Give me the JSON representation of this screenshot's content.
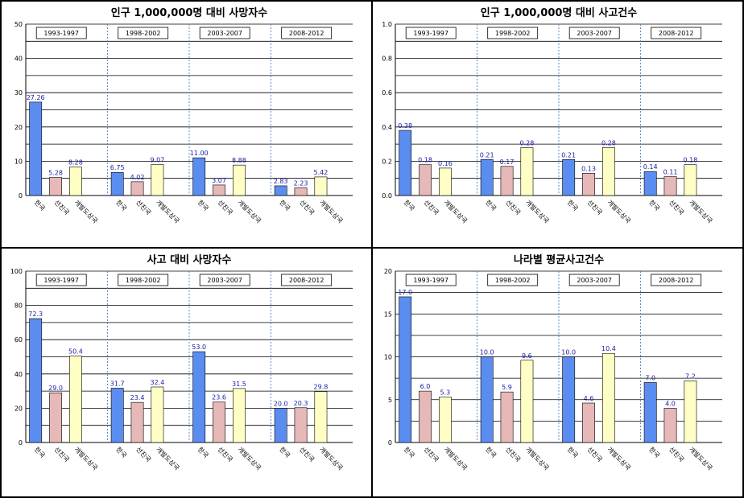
{
  "colors": {
    "korea": "#5b8cf0",
    "advanced": "#e6b8b7",
    "developing": "#ffffc5",
    "bar_stroke": "#000000",
    "grid": "#000000",
    "divider": "#4f81bd",
    "label": "#1a1aa6"
  },
  "chart_data": [
    {
      "type": "bar",
      "title": "인구 1,000,000명 대비 사망자수",
      "ylim": [
        0,
        50
      ],
      "yticks": [
        "0",
        "10",
        "20",
        "30",
        "40",
        "50"
      ],
      "groups": [
        "1993-1997",
        "1998-2002",
        "2003-2007",
        "2008-2012"
      ],
      "categories": [
        "한국",
        "선진국",
        "개발도상국"
      ],
      "values": [
        [
          27.26,
          5.28,
          8.28
        ],
        [
          6.75,
          4.02,
          9.07
        ],
        [
          11.0,
          3.07,
          8.88
        ],
        [
          2.83,
          2.23,
          5.42
        ]
      ],
      "labels": [
        [
          "27.26",
          "5.28",
          "8.28"
        ],
        [
          "6.75",
          "4.02",
          "9.07"
        ],
        [
          "11.00",
          "3.07",
          "8.88"
        ],
        [
          "2.83",
          "2.23",
          "5.42"
        ]
      ]
    },
    {
      "type": "bar",
      "title": "인구 1,000,000명 대비 사고건수",
      "ylim": [
        0,
        1.0
      ],
      "yticks": [
        "0.0",
        "0.2",
        "0.4",
        "0.6",
        "0.8",
        "1.0"
      ],
      "groups": [
        "1993-1997",
        "1998-2002",
        "2003-2007",
        "2008-2012"
      ],
      "categories": [
        "한국",
        "선진국",
        "개발도상국"
      ],
      "values": [
        [
          0.38,
          0.18,
          0.16
        ],
        [
          0.21,
          0.17,
          0.28
        ],
        [
          0.21,
          0.13,
          0.28
        ],
        [
          0.14,
          0.11,
          0.18
        ]
      ],
      "labels": [
        [
          "0.38",
          "0.18",
          "0.16"
        ],
        [
          "0.21",
          "0.17",
          "0.28"
        ],
        [
          "0.21",
          "0.13",
          "0.28"
        ],
        [
          "0.14",
          "0.11",
          "0.18"
        ]
      ]
    },
    {
      "type": "bar",
      "title": "사고 대비 사망자수",
      "ylim": [
        0,
        100
      ],
      "yticks": [
        "0",
        "20",
        "40",
        "60",
        "80",
        "100"
      ],
      "groups": [
        "1993-1997",
        "1998-2002",
        "2003-2007",
        "2008-2012"
      ],
      "categories": [
        "한국",
        "선진국",
        "개발도상국"
      ],
      "values": [
        [
          72.3,
          29.0,
          50.4
        ],
        [
          31.7,
          23.4,
          32.4
        ],
        [
          53.0,
          23.6,
          31.5
        ],
        [
          20.0,
          20.3,
          29.8
        ]
      ],
      "labels": [
        [
          "72.3",
          "29.0",
          "50.4"
        ],
        [
          "31.7",
          "23.4",
          "32.4"
        ],
        [
          "53.0",
          "23.6",
          "31.5"
        ],
        [
          "20.0",
          "20.3",
          "29.8"
        ]
      ]
    },
    {
      "type": "bar",
      "title": "나라별 평균사고건수",
      "ylim": [
        0,
        20
      ],
      "yticks": [
        "0",
        "5",
        "10",
        "15",
        "20"
      ],
      "groups": [
        "1993-1997",
        "1998-2002",
        "2003-2007",
        "2008-2012"
      ],
      "categories": [
        "한국",
        "선진국",
        "개발도상국"
      ],
      "values": [
        [
          17.0,
          6.0,
          5.3
        ],
        [
          10.0,
          5.9,
          9.6
        ],
        [
          10.0,
          4.6,
          10.4
        ],
        [
          7.0,
          4.0,
          7.2
        ]
      ],
      "labels": [
        [
          "17.0",
          "6.0",
          "5.3"
        ],
        [
          "10.0",
          "5.9",
          "9.6"
        ],
        [
          "10.0",
          "4.6",
          "10.4"
        ],
        [
          "7.0",
          "4.0",
          "7.2"
        ]
      ]
    }
  ]
}
